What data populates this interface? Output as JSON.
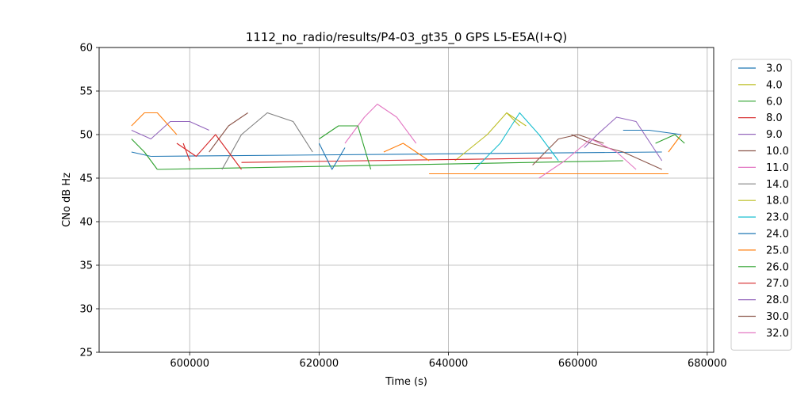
{
  "chart_data": {
    "type": "line",
    "title": "1112_no_radio/results/P4-03_gt35_0 GPS L5-E5A(I+Q)",
    "xlabel": "Time (s)",
    "ylabel": "CNo dB Hz",
    "xlim": [
      586000,
      681000
    ],
    "ylim": [
      25,
      60
    ],
    "xticks": [
      600000,
      620000,
      640000,
      660000,
      680000
    ],
    "xtick_labels": [
      "600000",
      "620000",
      "640000",
      "660000",
      "680000"
    ],
    "yticks": [
      25,
      30,
      35,
      40,
      45,
      50,
      55,
      60
    ],
    "ytick_labels": [
      "25",
      "30",
      "35",
      "40",
      "45",
      "50",
      "55",
      "60"
    ],
    "grid": true,
    "legend_position": "outside-right",
    "series": [
      {
        "name": "3.0",
        "color": "#1f77b4",
        "segments": [
          {
            "x": [
              591000,
              594000
            ],
            "y": [
              48.0,
              47.5
            ]
          },
          {
            "x": [
              594000,
              673000
            ],
            "y": [
              47.5,
              48.0
            ]
          }
        ]
      },
      {
        "name": "4.0",
        "color": "#bcbd22",
        "segments": [
          {
            "x": [
              641000,
              646000,
              649000,
              652000
            ],
            "y": [
              47.0,
              50.0,
              52.5,
              51.0
            ]
          }
        ]
      },
      {
        "name": "6.0",
        "color": "#2ca02c",
        "segments": [
          {
            "x": [
              591000,
              593000,
              595000
            ],
            "y": [
              49.5,
              48.0,
              46.0
            ]
          },
          {
            "x": [
              595000,
              667000
            ],
            "y": [
              46.0,
              47.0
            ]
          }
        ]
      },
      {
        "name": "8.0",
        "color": "#d62728",
        "segments": [
          {
            "x": [
              599000,
              600000
            ],
            "y": [
              49.0,
              47.0
            ]
          },
          {
            "x": [
              608000,
              656000
            ],
            "y": [
              46.8,
              47.3
            ]
          }
        ]
      },
      {
        "name": "9.0",
        "color": "#9467bd",
        "segments": [
          {
            "x": [
              591000,
              594000,
              597000,
              600000,
              603000
            ],
            "y": [
              50.5,
              49.5,
              51.5,
              51.5,
              50.5
            ]
          }
        ]
      },
      {
        "name": "10.0",
        "color": "#8c564b",
        "segments": [
          {
            "x": [
              603000,
              606000,
              609000
            ],
            "y": [
              48.0,
              51.0,
              52.5
            ]
          },
          {
            "x": [
              653000,
              657000,
              660000,
              664000
            ],
            "y": [
              46.5,
              49.5,
              50.0,
              49.0
            ]
          }
        ]
      },
      {
        "name": "11.0",
        "color": "#e377c2",
        "segments": [
          {
            "x": [
              624000,
              627000,
              629000,
              632000,
              635000
            ],
            "y": [
              49.0,
              52.0,
              53.5,
              52.0,
              49.0
            ]
          }
        ]
      },
      {
        "name": "14.0",
        "color": "#7f7f7f",
        "segments": [
          {
            "x": [
              605000,
              608000,
              612000,
              616000,
              619000
            ],
            "y": [
              46.0,
              50.0,
              52.5,
              51.5,
              48.0
            ]
          }
        ]
      },
      {
        "name": "18.0",
        "color": "#bcbd22",
        "segments": [
          {
            "x": [
              649000,
              651000
            ],
            "y": [
              52.5,
              51.0
            ]
          }
        ]
      },
      {
        "name": "23.0",
        "color": "#17becf",
        "segments": [
          {
            "x": [
              644000,
              648000,
              651000,
              654000,
              657000
            ],
            "y": [
              46.0,
              49.0,
              52.5,
              50.0,
              47.0
            ]
          }
        ]
      },
      {
        "name": "24.0",
        "color": "#1f77b4",
        "segments": [
          {
            "x": [
              620000,
              622000,
              624000
            ],
            "y": [
              49.0,
              46.0,
              48.5
            ]
          },
          {
            "x": [
              667000,
              671000,
              676000
            ],
            "y": [
              50.5,
              50.5,
              50.0
            ]
          }
        ]
      },
      {
        "name": "25.0",
        "color": "#ff7f0e",
        "segments": [
          {
            "x": [
              591000,
              593000,
              595000,
              598000
            ],
            "y": [
              51.0,
              52.5,
              52.5,
              50.0
            ]
          },
          {
            "x": [
              630000,
              633000,
              637000
            ],
            "y": [
              48.0,
              49.0,
              47.0
            ]
          },
          {
            "x": [
              637000,
              674000
            ],
            "y": [
              45.5,
              45.5
            ]
          },
          {
            "x": [
              674000,
              676000
            ],
            "y": [
              48.0,
              50.0
            ]
          }
        ]
      },
      {
        "name": "26.0",
        "color": "#2ca02c",
        "segments": [
          {
            "x": [
              620000,
              623000,
              626000,
              628000
            ],
            "y": [
              49.5,
              51.0,
              51.0,
              46.0
            ]
          },
          {
            "x": [
              672000,
              675000,
              676500
            ],
            "y": [
              49.0,
              50.0,
              49.0
            ]
          }
        ]
      },
      {
        "name": "27.0",
        "color": "#d62728",
        "segments": [
          {
            "x": [
              598000,
              601000,
              604000,
              608000
            ],
            "y": [
              49.0,
              47.5,
              50.0,
              46.0
            ]
          }
        ]
      },
      {
        "name": "28.0",
        "color": "#9467bd",
        "segments": [
          {
            "x": [
              661000,
              663000,
              666000,
              669000,
              673000
            ],
            "y": [
              48.5,
              50.0,
              52.0,
              51.5,
              47.0
            ]
          }
        ]
      },
      {
        "name": "30.0",
        "color": "#8c564b",
        "segments": [
          {
            "x": [
              659000,
              662000,
              667000,
              673000
            ],
            "y": [
              50.0,
              49.0,
              48.0,
              46.0
            ]
          }
        ]
      },
      {
        "name": "32.0",
        "color": "#e377c2",
        "segments": [
          {
            "x": [
              654000,
              658000,
              662000,
              666000,
              669000
            ],
            "y": [
              45.0,
              47.0,
              49.5,
              48.0,
              46.0
            ]
          }
        ]
      }
    ]
  }
}
